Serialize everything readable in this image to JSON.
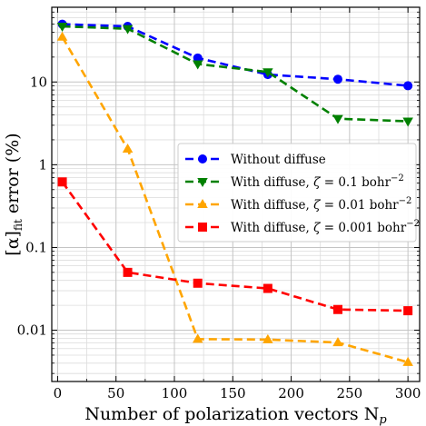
{
  "chart_data": {
    "type": "line",
    "xlabel": "Number of polarization vectors N",
    "xlabel_sub": "p",
    "ylabel": "[α]",
    "ylabel_sub": "fit",
    "ylabel_suffix": " error (%)",
    "xlim": [
      -5,
      310
    ],
    "ylim": [
      0.0024,
      80
    ],
    "yscale": "log",
    "grid": true,
    "legend_position": "center-right",
    "x_ticks": [
      0,
      50,
      100,
      150,
      200,
      250,
      300
    ],
    "x_tick_labels": [
      "0",
      "50",
      "100",
      "150",
      "200",
      "250",
      "300"
    ],
    "y_ticks": [
      0.01,
      0.1,
      1,
      10
    ],
    "y_tick_labels": [
      "0.01",
      "0.1",
      "1",
      "10"
    ],
    "series": [
      {
        "name": "Without diffuse",
        "name_parts": [
          "Without diffuse"
        ],
        "color": "#0000ff",
        "marker": "circle",
        "x": [
          4,
          60,
          120,
          180,
          240,
          300
        ],
        "y": [
          50,
          47,
          19.5,
          12.3,
          10.8,
          9.0
        ]
      },
      {
        "name": "With diffuse, ζ = 0.1 bohr−2",
        "name_parts": [
          "With diffuse, ",
          "ζ",
          " = 0.1 bohr",
          "−2"
        ],
        "color": "#008000",
        "marker": "triangle-down",
        "x": [
          4,
          60,
          120,
          180,
          240,
          300
        ],
        "y": [
          47,
          44,
          16.5,
          13.2,
          3.6,
          3.35
        ]
      },
      {
        "name": "With diffuse, ζ = 0.01 bohr−2",
        "name_parts": [
          "With diffuse, ",
          "ζ",
          " = 0.01 bohr",
          "−2"
        ],
        "color": "#ffa500",
        "marker": "triangle-up",
        "x": [
          4,
          60,
          120,
          180,
          240,
          300
        ],
        "y": [
          35,
          1.55,
          0.0078,
          0.0077,
          0.0071,
          0.0041
        ]
      },
      {
        "name": "With diffuse, ζ = 0.001 bohr−2",
        "name_parts": [
          "With diffuse, ",
          "ζ",
          " = 0.001 bohr",
          "−2"
        ],
        "color": "#ff0000",
        "marker": "square",
        "x": [
          4,
          60,
          120,
          180,
          240,
          300
        ],
        "y": [
          0.62,
          0.05,
          0.037,
          0.032,
          0.0178,
          0.0172
        ]
      }
    ]
  }
}
